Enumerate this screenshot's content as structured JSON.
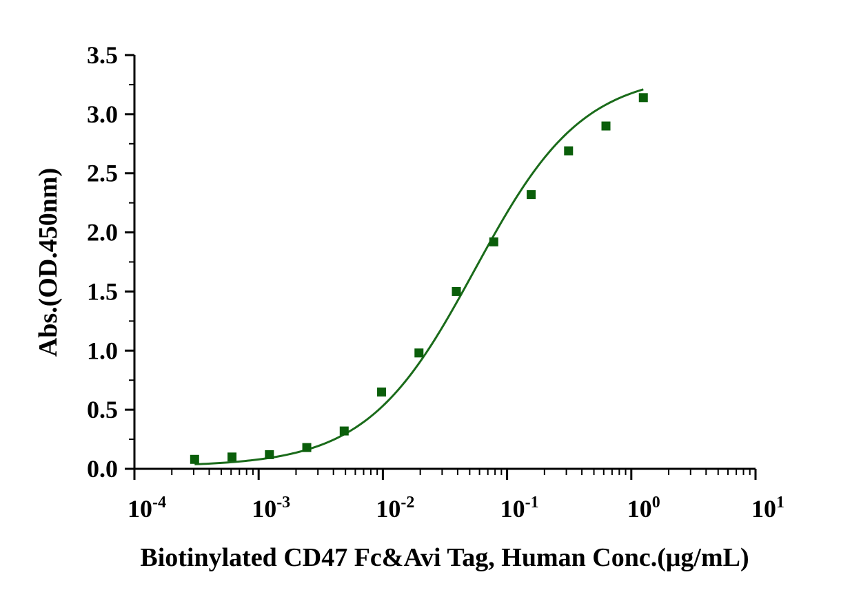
{
  "chart_data": {
    "type": "scatter",
    "xlabel": "Biotinylated CD47 Fc&Avi Tag, Human Conc.(μg/mL)",
    "ylabel": "Abs.(OD.450nm)",
    "x_scale": "log",
    "xlim": [
      0.0001,
      10
    ],
    "ylim": [
      0,
      3.5
    ],
    "x_ticks": [
      {
        "value": 0.0001,
        "base": "10",
        "exp": "-4"
      },
      {
        "value": 0.001,
        "base": "10",
        "exp": "-3"
      },
      {
        "value": 0.01,
        "base": "10",
        "exp": "-2"
      },
      {
        "value": 0.1,
        "base": "10",
        "exp": "-1"
      },
      {
        "value": 1,
        "base": "10",
        "exp": "0"
      },
      {
        "value": 10,
        "base": "10",
        "exp": "1"
      }
    ],
    "y_ticks": [
      "0.0",
      "0.5",
      "1.0",
      "1.5",
      "2.0",
      "2.5",
      "3.0",
      "3.5"
    ],
    "grid": false,
    "color": "#1a6b1a",
    "marker_color": "#0a5e0a",
    "series": [
      {
        "marker": "square",
        "x": [
          0.0003052,
          0.0006104,
          0.001221,
          0.002441,
          0.004883,
          0.009766,
          0.01953,
          0.03906,
          0.07813,
          0.1563,
          0.3125,
          0.625,
          1.25
        ],
        "y": [
          0.08,
          0.1,
          0.12,
          0.18,
          0.32,
          0.65,
          0.98,
          1.5,
          1.92,
          2.32,
          2.69,
          2.9,
          3.14
        ]
      }
    ],
    "fit": {
      "model": "4PL",
      "bottom": 0.02,
      "top": 3.35,
      "ec50": 0.055,
      "hill": 1.0,
      "x_range": [
        0.0003052,
        1.25
      ]
    }
  }
}
